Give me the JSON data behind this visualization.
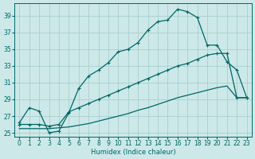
{
  "xlabel": "Humidex (Indice chaleur)",
  "background_color": "#cce8e8",
  "grid_color": "#aacfcf",
  "line_color": "#006666",
  "xlim": [
    -0.5,
    23.5
  ],
  "ylim": [
    24.5,
    40.5
  ],
  "yticks": [
    25,
    27,
    29,
    31,
    33,
    35,
    37,
    39
  ],
  "xticks": [
    0,
    1,
    2,
    3,
    4,
    5,
    6,
    7,
    8,
    9,
    10,
    11,
    12,
    13,
    14,
    15,
    16,
    17,
    18,
    19,
    20,
    21,
    22,
    23
  ],
  "curve1_x": [
    0,
    1,
    2,
    3,
    4,
    5,
    6,
    7,
    8,
    9,
    10,
    11,
    12,
    13,
    14,
    15,
    16,
    17,
    18,
    19,
    20,
    21,
    22,
    23
  ],
  "curve1_y": [
    26.2,
    28.0,
    27.6,
    25.0,
    25.2,
    27.4,
    30.3,
    31.8,
    32.5,
    33.4,
    34.7,
    35.0,
    35.8,
    37.3,
    38.3,
    38.5,
    39.8,
    39.5,
    38.8,
    35.5,
    35.5,
    33.5,
    32.5,
    29.2
  ],
  "curve2_x": [
    0,
    1,
    2,
    3,
    4,
    5,
    6,
    7,
    8,
    9,
    10,
    11,
    12,
    13,
    14,
    15,
    16,
    17,
    18,
    19,
    20,
    21,
    22,
    23
  ],
  "curve2_y": [
    26.0,
    26.0,
    26.0,
    25.8,
    26.0,
    27.5,
    28.0,
    28.5,
    29.0,
    29.5,
    30.0,
    30.5,
    31.0,
    31.5,
    32.0,
    32.5,
    33.0,
    33.3,
    33.8,
    34.3,
    34.5,
    34.5,
    29.2,
    29.2
  ],
  "curve3_x": [
    0,
    1,
    2,
    3,
    4,
    5,
    6,
    7,
    8,
    9,
    10,
    11,
    12,
    13,
    14,
    15,
    16,
    17,
    18,
    19,
    20,
    21,
    22,
    23
  ],
  "curve3_y": [
    25.5,
    25.5,
    25.5,
    25.5,
    25.6,
    25.7,
    25.9,
    26.1,
    26.4,
    26.7,
    27.0,
    27.3,
    27.7,
    28.0,
    28.4,
    28.8,
    29.2,
    29.5,
    29.8,
    30.1,
    30.4,
    30.6,
    29.2,
    29.2
  ]
}
